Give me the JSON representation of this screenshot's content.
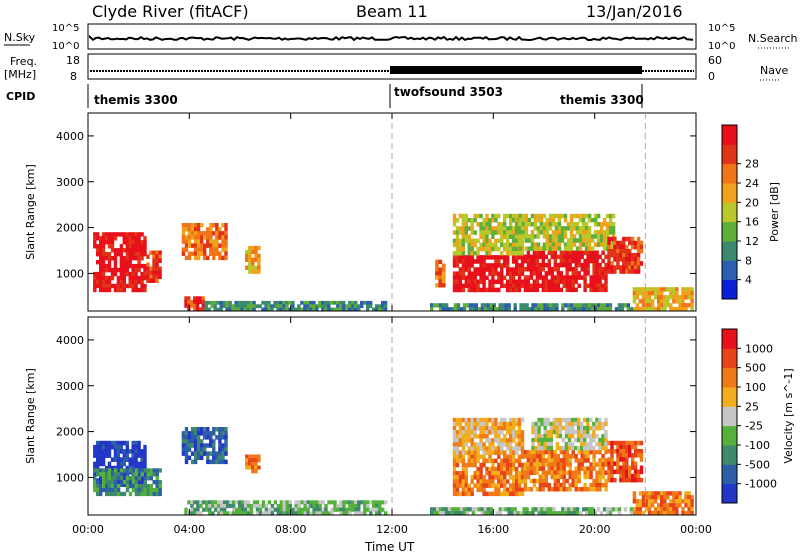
{
  "header": {
    "title": "Clyde River (fitACF)",
    "beam": "Beam 11",
    "date": "13/Jan/2016"
  },
  "strips": {
    "nsky_label": "N.Sky",
    "nsky_ticks": [
      "10^5",
      "10^0"
    ],
    "nsearch_label": "N.Search",
    "nsearch_ticks": [
      "10^5",
      "10^0"
    ],
    "freq_label": "Freq.",
    "freq_unit": "[MHz]",
    "freq_ticks": [
      "18",
      "8"
    ],
    "nave_label": "Nave",
    "nave_ticks": [
      "60",
      "0"
    ],
    "cpid_label": "CPID",
    "cpid_segments": [
      {
        "name": "themis 3300",
        "start_hour": 0
      },
      {
        "name": "twofsound 3503",
        "start_hour": 12
      },
      {
        "name": "themis 3300",
        "start_hour": 22
      }
    ]
  },
  "chart_data": [
    {
      "type": "heatmap",
      "title": "",
      "xlabel": "Time UT",
      "ylabel": "Slant Range [km]",
      "x_ticks": [
        "00:00",
        "04:00",
        "08:00",
        "12:00",
        "16:00",
        "20:00",
        "00:00"
      ],
      "xlim_hours": [
        0,
        24
      ],
      "y_ticks": [
        "1000",
        "2000",
        "3000",
        "4000"
      ],
      "ylim": [
        180,
        4500
      ],
      "colorbar": {
        "label": "Power [dB]",
        "ticks": [
          "4",
          "8",
          "12",
          "16",
          "20",
          "24",
          "28"
        ],
        "colors": [
          "#0a1fd8",
          "#2d5fb0",
          "#3b8a6e",
          "#5fae3a",
          "#b8c82a",
          "#f2a21a",
          "#f07418",
          "#e03418",
          "#e8101a"
        ]
      },
      "data_regions": [
        {
          "t0": 0.2,
          "t1": 2.3,
          "r0": 600,
          "r1": 1900,
          "level": 8
        },
        {
          "t0": 2.3,
          "t1": 2.9,
          "r0": 800,
          "r1": 1500,
          "level": 7
        },
        {
          "t0": 3.7,
          "t1": 5.5,
          "r0": 1300,
          "r1": 2100,
          "level": 6
        },
        {
          "t0": 6.2,
          "t1": 6.8,
          "r0": 1000,
          "r1": 1600,
          "level": 5
        },
        {
          "t0": 3.8,
          "t1": 4.6,
          "r0": 180,
          "r1": 500,
          "level": 7
        },
        {
          "t0": 4.6,
          "t1": 11.8,
          "r0": 180,
          "r1": 400,
          "level": 2
        },
        {
          "t0": 13.7,
          "t1": 14.1,
          "r0": 700,
          "r1": 1300,
          "level": 6
        },
        {
          "t0": 14.4,
          "t1": 17.2,
          "r0": 600,
          "r1": 1400,
          "level": 8
        },
        {
          "t0": 14.4,
          "t1": 17.2,
          "r0": 1400,
          "r1": 2300,
          "level": 4
        },
        {
          "t0": 17.2,
          "t1": 20.5,
          "r0": 600,
          "r1": 1500,
          "level": 8
        },
        {
          "t0": 17.0,
          "t1": 20.8,
          "r0": 1500,
          "r1": 2300,
          "level": 4
        },
        {
          "t0": 20.5,
          "t1": 21.9,
          "r0": 1000,
          "r1": 1800,
          "level": 7
        },
        {
          "t0": 21.5,
          "t1": 23.9,
          "r0": 180,
          "r1": 700,
          "level": 5
        },
        {
          "t0": 13.5,
          "t1": 21.5,
          "r0": 180,
          "r1": 350,
          "level": 2
        }
      ]
    },
    {
      "type": "heatmap",
      "title": "",
      "xlabel": "Time UT",
      "ylabel": "Slant Range [km]",
      "x_ticks": [
        "00:00",
        "04:00",
        "08:00",
        "12:00",
        "16:00",
        "20:00",
        "00:00"
      ],
      "xlim_hours": [
        0,
        24
      ],
      "y_ticks": [
        "1000",
        "2000",
        "3000",
        "4000"
      ],
      "ylim": [
        180,
        4500
      ],
      "colorbar": {
        "label": "Velocity [m s^-1]",
        "ticks": [
          "1000",
          "500",
          "100",
          "25",
          "-25",
          "-100",
          "-500",
          "-1000"
        ],
        "colors": [
          "#2236c8",
          "#2d5fa8",
          "#3e8a6a",
          "#54b23c",
          "#c6c6c6",
          "#f2ac1c",
          "#f07a18",
          "#e84418",
          "#e8101a"
        ]
      },
      "data_regions": [
        {
          "t0": 0.2,
          "t1": 2.3,
          "r0": 800,
          "r1": 1800,
          "level": 0
        },
        {
          "t0": 0.2,
          "t1": 2.9,
          "r0": 600,
          "r1": 1200,
          "level": 2
        },
        {
          "t0": 3.7,
          "t1": 5.5,
          "r0": 1300,
          "r1": 2100,
          "level": 1
        },
        {
          "t0": 6.2,
          "t1": 6.8,
          "r0": 1100,
          "r1": 1500,
          "level": 6
        },
        {
          "t0": 3.8,
          "t1": 11.8,
          "r0": 180,
          "r1": 500,
          "level": 3
        },
        {
          "t0": 14.4,
          "t1": 17.2,
          "r0": 600,
          "r1": 1500,
          "level": 6
        },
        {
          "t0": 14.4,
          "t1": 17.2,
          "r0": 1500,
          "r1": 2300,
          "level": 5
        },
        {
          "t0": 17.2,
          "t1": 20.5,
          "r0": 700,
          "r1": 1600,
          "level": 6
        },
        {
          "t0": 17.5,
          "t1": 20.5,
          "r0": 1600,
          "r1": 2300,
          "level": 4
        },
        {
          "t0": 20.5,
          "t1": 21.9,
          "r0": 900,
          "r1": 1800,
          "level": 7
        },
        {
          "t0": 21.5,
          "t1": 23.9,
          "r0": 180,
          "r1": 700,
          "level": 6
        },
        {
          "t0": 13.5,
          "t1": 21.5,
          "r0": 180,
          "r1": 350,
          "level": 3
        }
      ]
    }
  ]
}
